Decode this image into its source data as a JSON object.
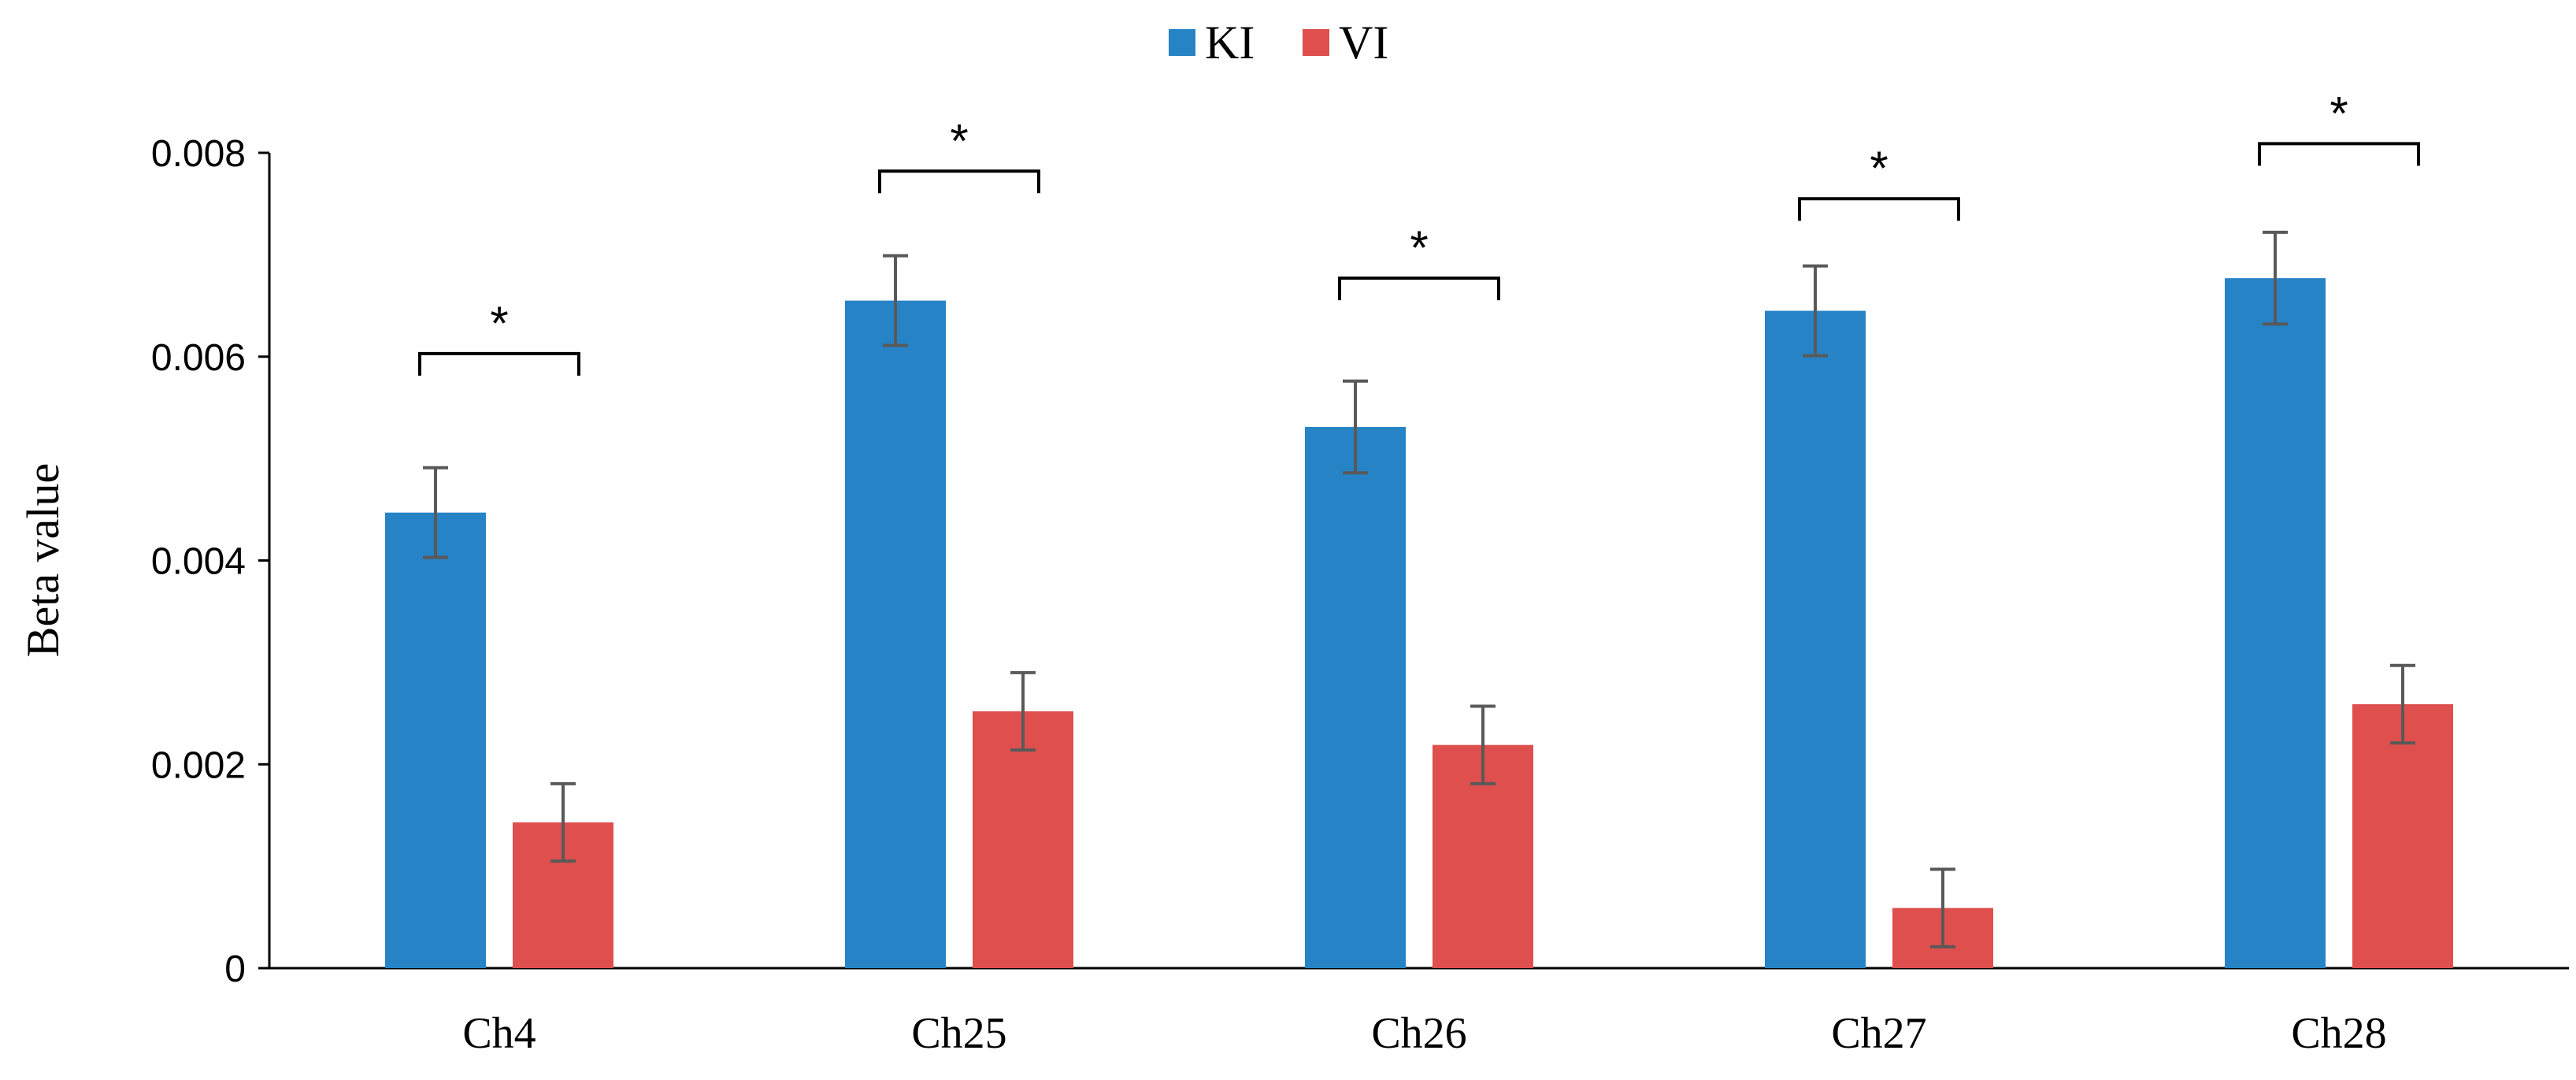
{
  "chart_data": {
    "type": "bar",
    "title": "",
    "xlabel": "",
    "ylabel": "Beta value",
    "ylim": [
      0,
      0.008
    ],
    "yticks": [
      0,
      0.002,
      0.004,
      0.006,
      0.008
    ],
    "ytick_labels": [
      "0",
      "0.002",
      "0.004",
      "0.006",
      "0.008"
    ],
    "grid": false,
    "legend_position": "top-center",
    "categories": [
      "Ch4",
      "Ch25",
      "Ch26",
      "Ch27",
      "Ch28"
    ],
    "series": [
      {
        "name": "KI",
        "color": "#2683C6",
        "values": [
          0.00447,
          0.00655,
          0.00531,
          0.00645,
          0.00677
        ],
        "error": [
          0.00044,
          0.00044,
          0.00045,
          0.00044,
          0.00045
        ]
      },
      {
        "name": "VI",
        "color": "#DE4F4D",
        "values": [
          0.00143,
          0.00252,
          0.00219,
          0.00059,
          0.00259
        ],
        "error": [
          0.00038,
          0.00038,
          0.00038,
          0.00038,
          0.00038
        ]
      }
    ],
    "significance": [
      {
        "category": "Ch4",
        "label": "*",
        "level": 0.00603
      },
      {
        "category": "Ch25",
        "label": "*",
        "level": 0.00782
      },
      {
        "category": "Ch26",
        "label": "*",
        "level": 0.00677
      },
      {
        "category": "Ch27",
        "label": "*",
        "level": 0.00755
      },
      {
        "category": "Ch28",
        "label": "*",
        "level": 0.00809
      }
    ]
  }
}
